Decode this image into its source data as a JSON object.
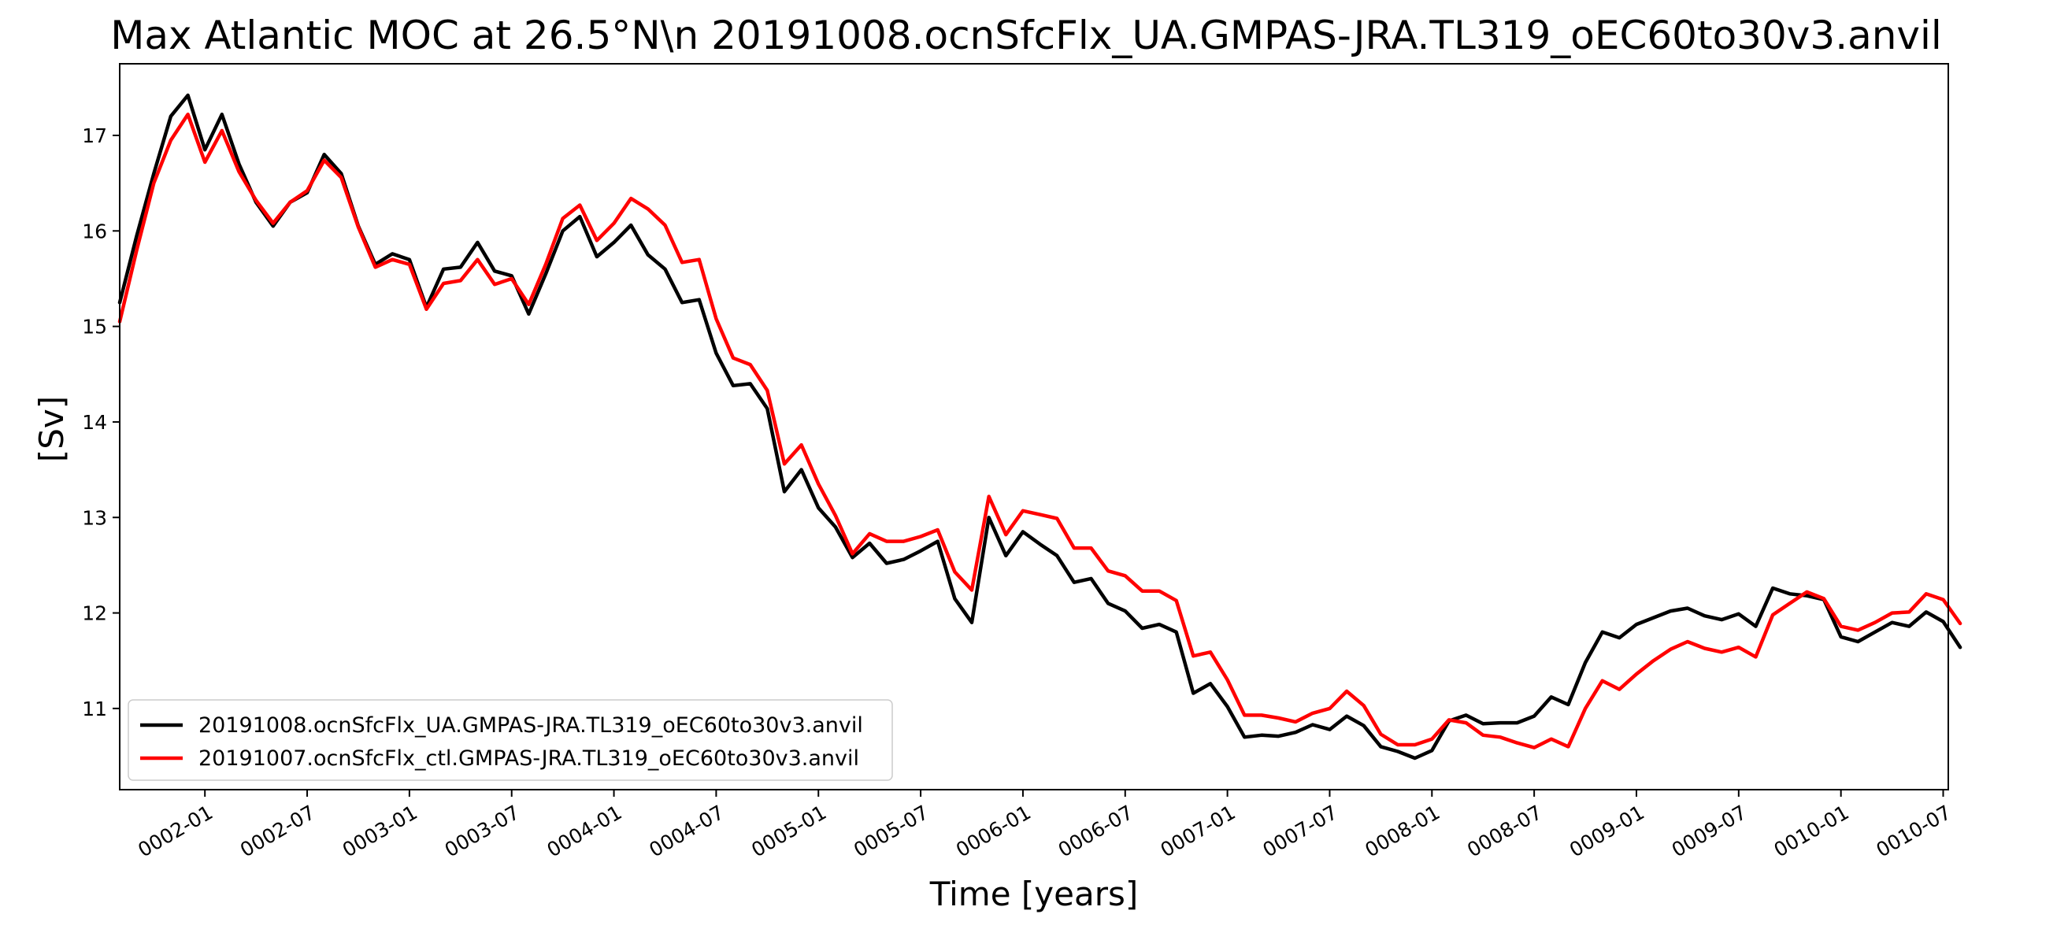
{
  "chart_data": {
    "type": "line",
    "title": "Max Atlantic MOC at 26.5°N\\n 20191008.ocnSfcFlx_UA.GMPAS-JRA.TL319_oEC60to30v3.anvil",
    "xlabel": "Time [years]",
    "ylabel": "[Sv]",
    "x_axis": {
      "type": "time",
      "start": "0001-08",
      "step_months": 1,
      "tick_labels": [
        "0002-01",
        "0002-07",
        "0003-01",
        "0003-07",
        "0004-01",
        "0004-07",
        "0005-01",
        "0005-07",
        "0006-01",
        "0006-07",
        "0007-01",
        "0007-07",
        "0008-01",
        "0008-07",
        "0009-01",
        "0009-07",
        "0010-01",
        "0010-07"
      ],
      "tick_months": [
        5,
        11,
        17,
        23,
        29,
        35,
        41,
        47,
        53,
        59,
        65,
        71,
        77,
        83,
        89,
        95,
        101,
        107
      ],
      "xlim_months": [
        0,
        107.3
      ],
      "tick_rotation_deg": 30
    },
    "ylim": [
      10.15,
      17.75
    ],
    "yticks": [
      11,
      12,
      13,
      14,
      15,
      16,
      17
    ],
    "grid": false,
    "legend": {
      "placement": "lower-left"
    },
    "series": [
      {
        "name": "20191008.ocnSfcFlx_UA.GMPAS-JRA.TL319_oEC60to30v3.anvil",
        "color": "#000000",
        "values": [
          15.25,
          15.95,
          16.6,
          17.2,
          17.42,
          16.85,
          17.22,
          16.7,
          16.3,
          16.05,
          16.3,
          16.4,
          16.8,
          16.6,
          16.05,
          15.65,
          15.76,
          15.7,
          15.2,
          15.6,
          15.62,
          15.88,
          15.58,
          15.53,
          15.13,
          15.55,
          16.0,
          16.15,
          15.73,
          15.88,
          16.06,
          15.75,
          15.6,
          15.25,
          15.28,
          14.72,
          14.38,
          14.4,
          14.14,
          13.27,
          13.5,
          13.1,
          12.9,
          12.58,
          12.73,
          12.52,
          12.56,
          12.65,
          12.75,
          12.15,
          11.9,
          13.0,
          12.6,
          12.85,
          12.72,
          12.6,
          12.32,
          12.36,
          12.1,
          12.02,
          11.84,
          11.88,
          11.8,
          11.16,
          11.26,
          11.02,
          10.7,
          10.72,
          10.71,
          10.75,
          10.83,
          10.78,
          10.92,
          10.82,
          10.6,
          10.55,
          10.48,
          10.56,
          10.87,
          10.93,
          10.84,
          10.85,
          10.85,
          10.92,
          11.12,
          11.04,
          11.48,
          11.8,
          11.74,
          11.88,
          11.95,
          12.02,
          12.05,
          11.97,
          11.93,
          11.99,
          11.86,
          12.26,
          12.2,
          12.18,
          12.14,
          11.75,
          11.7,
          11.8,
          11.9,
          11.86,
          12.01,
          11.91,
          11.64
        ]
      },
      {
        "name": "20191007.ocnSfcFlx_ctl.GMPAS-JRA.TL319_oEC60to30v3.anvil",
        "color": "#ff0000",
        "values": [
          15.05,
          15.8,
          16.5,
          16.95,
          17.22,
          16.72,
          17.05,
          16.62,
          16.32,
          16.08,
          16.3,
          16.42,
          16.74,
          16.56,
          16.04,
          15.62,
          15.7,
          15.65,
          15.18,
          15.45,
          15.48,
          15.7,
          15.44,
          15.5,
          15.23,
          15.65,
          16.13,
          16.27,
          15.9,
          16.08,
          16.34,
          16.23,
          16.06,
          15.67,
          15.7,
          15.08,
          14.67,
          14.6,
          14.33,
          13.56,
          13.76,
          13.35,
          13.02,
          12.62,
          12.83,
          12.75,
          12.75,
          12.8,
          12.87,
          12.43,
          12.24,
          13.22,
          12.82,
          13.07,
          13.03,
          12.99,
          12.68,
          12.68,
          12.44,
          12.39,
          12.23,
          12.23,
          12.13,
          11.55,
          11.59,
          11.3,
          10.93,
          10.93,
          10.9,
          10.86,
          10.95,
          11.0,
          11.18,
          11.03,
          10.73,
          10.62,
          10.62,
          10.68,
          10.88,
          10.85,
          10.72,
          10.7,
          10.64,
          10.59,
          10.68,
          10.6,
          11.0,
          11.29,
          11.2,
          11.36,
          11.5,
          11.62,
          11.7,
          11.63,
          11.59,
          11.64,
          11.54,
          11.98,
          12.1,
          12.22,
          12.15,
          11.86,
          11.82,
          11.9,
          12.0,
          12.01,
          12.2,
          12.14,
          11.89
        ]
      }
    ]
  }
}
